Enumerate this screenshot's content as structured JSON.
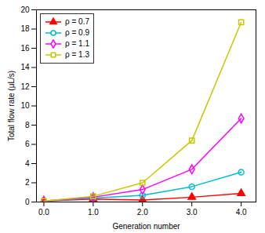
{
  "chart_data": {
    "type": "line",
    "x": [
      0,
      1,
      2,
      3,
      4
    ],
    "series": [
      {
        "name": "ρ = 0.7",
        "color": "#ff0000",
        "marker": "triangle",
        "values": [
          0.1,
          0.3,
          0.2,
          0.5,
          0.9
        ]
      },
      {
        "name": "ρ = 0.9",
        "color": "#00bcd4",
        "marker": "circle-open",
        "values": [
          0.1,
          0.4,
          0.7,
          1.6,
          3.1
        ]
      },
      {
        "name": "ρ = 1.1",
        "color": "#ff00ff",
        "marker": "diamond-open",
        "values": [
          0.1,
          0.5,
          1.3,
          3.4,
          8.7
        ]
      },
      {
        "name": "ρ = 1.3",
        "color": "#c8c800",
        "marker": "square-open",
        "values": [
          0.1,
          0.6,
          2.0,
          6.4,
          18.7
        ]
      }
    ],
    "xlabel": "Generation number",
    "ylabel": "Total flow rate (μL/s)",
    "xlim": [
      -0.15,
      4.3
    ],
    "ylim": [
      0,
      20
    ],
    "xticks": [
      0,
      1,
      2,
      3,
      4
    ],
    "yticks": [
      0,
      2,
      4,
      6,
      8,
      10,
      12,
      14,
      16,
      18,
      20
    ],
    "grid": false,
    "legend": "upper left"
  }
}
